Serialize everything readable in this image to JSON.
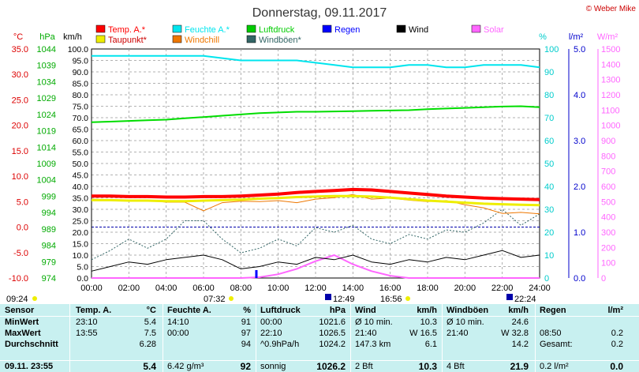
{
  "title": "Donnerstag, 09.11.2017",
  "credit": "© Weber Mike",
  "legend": [
    {
      "label": "Temp. A.*",
      "color": "#ff0000"
    },
    {
      "label": "Feuchte A.*",
      "color": "#00e5ee"
    },
    {
      "label": "Luftdruck",
      "color": "#00cc00"
    },
    {
      "label": "Regen",
      "color": "#0000ff"
    },
    {
      "label": "Wind",
      "color": "#000000"
    },
    {
      "label": "Solar",
      "color": "#ff66ff"
    },
    {
      "label": "Taupunkt*",
      "color": "#eeee00"
    },
    {
      "label": "Windchill",
      "color": "#ee7700"
    },
    {
      "label": "Windböen*",
      "color": "#336666"
    }
  ],
  "axes": {
    "temp_unit": "°C",
    "pressure_unit": "hPa",
    "wind_unit": "km/h",
    "humidity_unit": "%",
    "rain_unit": "l/m²",
    "solar_unit": "W/m²",
    "temp_ticks": [
      "35.0",
      "30.0",
      "25.0",
      "20.0",
      "15.0",
      "10.0",
      "5.0",
      "0.0",
      "-5.0",
      "-10.0"
    ],
    "pressure_ticks": [
      "1044",
      "1039",
      "1034",
      "1029",
      "1024",
      "1019",
      "1014",
      "1009",
      "1004",
      "999",
      "994",
      "989",
      "984",
      "979",
      "974"
    ],
    "wind_ticks": [
      "100.0",
      "95.0",
      "90.0",
      "85.0",
      "80.0",
      "75.0",
      "70.0",
      "65.0",
      "60.0",
      "55.0",
      "50.0",
      "45.0",
      "40.0",
      "35.0",
      "30.0",
      "25.0",
      "20.0",
      "15.0",
      "10.0",
      "5.0",
      "0.0"
    ],
    "humidity_ticks": [
      "100",
      "90",
      "80",
      "70",
      "60",
      "50",
      "40",
      "30",
      "20",
      "10",
      "0"
    ],
    "rain_ticks": [
      "5.0",
      "4.0",
      "3.0",
      "2.0",
      "1.0",
      "0.0"
    ],
    "solar_ticks": [
      "1500",
      "1400",
      "1300",
      "1200",
      "1100",
      "1000",
      "900",
      "800",
      "700",
      "600",
      "500",
      "400",
      "300",
      "200",
      "100",
      "0"
    ],
    "time_ticks": [
      "00:00",
      "02:00",
      "04:00",
      "06:00",
      "08:00",
      "10:00",
      "12:00",
      "14:00",
      "16:00",
      "18:00",
      "20:00",
      "22:00",
      "24:00"
    ]
  },
  "markers": {
    "sunrise": "07:32",
    "sunset": "16:56",
    "moonset": "09:24",
    "max_solar_time": "12:49",
    "max_wind_time": "22:24"
  },
  "chart_data": {
    "type": "line",
    "x_hours": [
      0,
      1,
      2,
      3,
      4,
      5,
      6,
      7,
      8,
      9,
      10,
      11,
      12,
      13,
      14,
      15,
      16,
      17,
      18,
      19,
      20,
      21,
      22,
      23,
      24
    ],
    "series": [
      {
        "name": "Temp. A.*",
        "unit": "°C",
        "values": [
          6.1,
          6.1,
          6.0,
          6.0,
          5.9,
          5.9,
          6.0,
          6.0,
          6.1,
          6.3,
          6.5,
          6.8,
          7.0,
          7.2,
          7.4,
          7.3,
          7.0,
          6.7,
          6.4,
          6.1,
          5.9,
          5.7,
          5.6,
          5.5,
          5.4
        ]
      },
      {
        "name": "Taupunkt*",
        "unit": "°C",
        "values": [
          5.3,
          5.3,
          5.2,
          5.2,
          5.1,
          5.1,
          5.2,
          5.3,
          5.4,
          5.6,
          5.7,
          5.9,
          6.0,
          6.1,
          6.1,
          6.0,
          5.8,
          5.5,
          5.2,
          5.0,
          4.8,
          4.6,
          4.5,
          4.4,
          4.3
        ]
      },
      {
        "name": "Feuchte A.*",
        "unit": "%",
        "values": [
          97,
          97,
          97,
          97,
          97,
          97,
          97,
          96,
          95,
          95,
          95,
          95,
          94,
          93,
          92,
          92,
          92,
          93,
          93,
          92,
          92,
          93,
          93,
          93,
          92
        ]
      },
      {
        "name": "Luftdruck",
        "unit": "hPa",
        "values": [
          1021.6,
          1021.8,
          1022.0,
          1022.2,
          1022.4,
          1022.8,
          1023.2,
          1023.6,
          1024.0,
          1024.4,
          1024.6,
          1024.8,
          1024.8,
          1024.9,
          1025.0,
          1025.1,
          1025.2,
          1025.3,
          1025.6,
          1025.8,
          1026.0,
          1026.2,
          1026.4,
          1026.5,
          1026.2
        ]
      },
      {
        "name": "Wind",
        "unit": "km/h",
        "values": [
          3,
          5,
          7,
          6,
          8,
          9,
          10,
          8,
          4,
          5,
          7,
          6,
          9,
          8,
          10,
          7,
          6,
          8,
          7,
          9,
          8,
          10,
          12,
          9,
          10
        ]
      },
      {
        "name": "Windböen*",
        "unit": "km/h",
        "values": [
          8,
          12,
          17,
          13,
          17,
          25,
          25,
          17,
          11,
          13,
          17,
          14,
          22,
          20,
          23,
          17,
          15,
          19,
          17,
          21,
          20,
          24,
          30,
          23,
          28
        ]
      },
      {
        "name": "Windchill",
        "unit": "°C",
        "values": [
          5.5,
          5.4,
          5.3,
          5.3,
          4.9,
          4.9,
          3.2,
          4.8,
          5.1,
          5.0,
          5.2,
          4.8,
          5.5,
          5.8,
          6.4,
          5.5,
          5.7,
          5.3,
          5.0,
          5.2,
          4.4,
          3.8,
          2.7,
          2.9,
          2.6
        ]
      },
      {
        "name": "Solar",
        "unit": "W/m²",
        "values": [
          0,
          0,
          0,
          0,
          0,
          0,
          0,
          0,
          0,
          5,
          25,
          60,
          110,
          150,
          90,
          45,
          15,
          0,
          0,
          0,
          0,
          0,
          0,
          0,
          0
        ]
      }
    ]
  },
  "stats": {
    "headers": {
      "sensor": "Sensor",
      "temp": "Temp. A.",
      "temp_unit": "°C",
      "hum": "Feuchte A.",
      "hum_unit": "%",
      "press": "Luftdruck",
      "press_unit": "hPa",
      "wind": "Wind",
      "wind_unit": "km/h",
      "gust": "Windböen",
      "gust_unit": "km/h",
      "rain": "Regen",
      "rain_unit": "l/m²"
    },
    "rows": [
      {
        "label": "MinWert",
        "temp_time": "23:10",
        "temp": "5.4",
        "hum_time": "14:10",
        "hum": "91",
        "press_time": "00:00",
        "press": "1021.6",
        "wind_a": "Ø 10 min.",
        "wind": "10.3",
        "gust_a": "Ø 10 min.",
        "gust": "24.6",
        "rain_a": "",
        "rain": ""
      },
      {
        "label": "MaxWert",
        "temp_time": "13:55",
        "temp": "7.5",
        "hum_time": "00:00",
        "hum": "97",
        "press_time": "22:10",
        "press": "1026.5",
        "wind_a": "21:40",
        "wind_b": "W 16.5",
        "gust_a": "21:40",
        "gust": "W 32.8",
        "rain_a": "08:50",
        "rain": "0.2"
      },
      {
        "label": "Durchschnitt",
        "temp_time": "",
        "temp": "6.28",
        "hum_time": "",
        "hum": "94",
        "press_time": "^0.9hPa/h",
        "press": "1024.2",
        "wind_a": "147.3 km",
        "wind": "6.1",
        "gust_a": "",
        "gust": "14.2",
        "rain_a": "Gesamt:",
        "rain": "0.2"
      },
      {
        "label": "09.11. 23:55",
        "temp_time": "",
        "temp": "5.4",
        "hum_time": "6.42 g/m³",
        "hum": "92",
        "press_time": "sonnig",
        "press": "1026.2",
        "wind_a": "2 Bft",
        "wind": "10.3",
        "gust_a": "4 Bft",
        "gust": "21.9",
        "rain_a": "0.2 l/m²",
        "rain": "0.0"
      }
    ]
  }
}
